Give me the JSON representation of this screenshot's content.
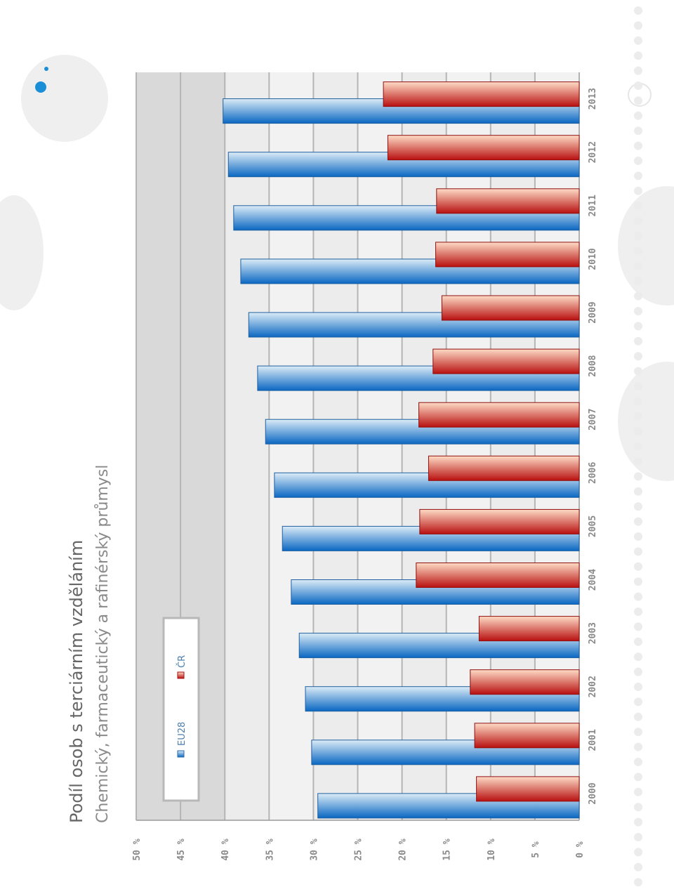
{
  "colors": {
    "eu_dark": "#0a67c2",
    "eu_light": "#dcecf7",
    "cr_dark": "#b81010",
    "cr_light": "#fddcc6",
    "plot_band_dark": "#d9d9d9",
    "plot_band_light": "#ececec",
    "grid": "#b5b5b5",
    "accent_circle": "#1b8ed8",
    "decor_gray": "#efefef"
  },
  "chart_data": {
    "type": "bar",
    "orientation": "rotated 90 degrees counter-clockwise (values run along the page's vertical axis)",
    "title": "Podíl osob s terciárním vzděláním",
    "subtitle": "Chemický, farmaceutický a rafinérský průmysl",
    "categories": [
      "2000",
      "2001",
      "2002",
      "2003",
      "2004",
      "2005",
      "2006",
      "2007",
      "2008",
      "2009",
      "2010",
      "2011",
      "2012",
      "2013"
    ],
    "value_ticks": [
      "0 %",
      "5 %",
      "10 %",
      "15 %",
      "20 %",
      "25 %",
      "30 %",
      "35 %",
      "40 %",
      "45 %",
      "50 %"
    ],
    "ylim": [
      0,
      50
    ],
    "grid": true,
    "legend_position": "top-left",
    "series": [
      {
        "name": "EU28",
        "values": [
          29.5,
          30.2,
          30.9,
          31.6,
          32.5,
          33.5,
          34.4,
          35.4,
          36.3,
          37.3,
          38.2,
          39.0,
          39.6,
          40.2
        ]
      },
      {
        "name": "ČR",
        "values": [
          11.6,
          11.8,
          12.3,
          11.3,
          18.4,
          18.0,
          17.0,
          18.1,
          16.5,
          15.5,
          16.2,
          16.1,
          21.6,
          22.1
        ]
      }
    ]
  }
}
